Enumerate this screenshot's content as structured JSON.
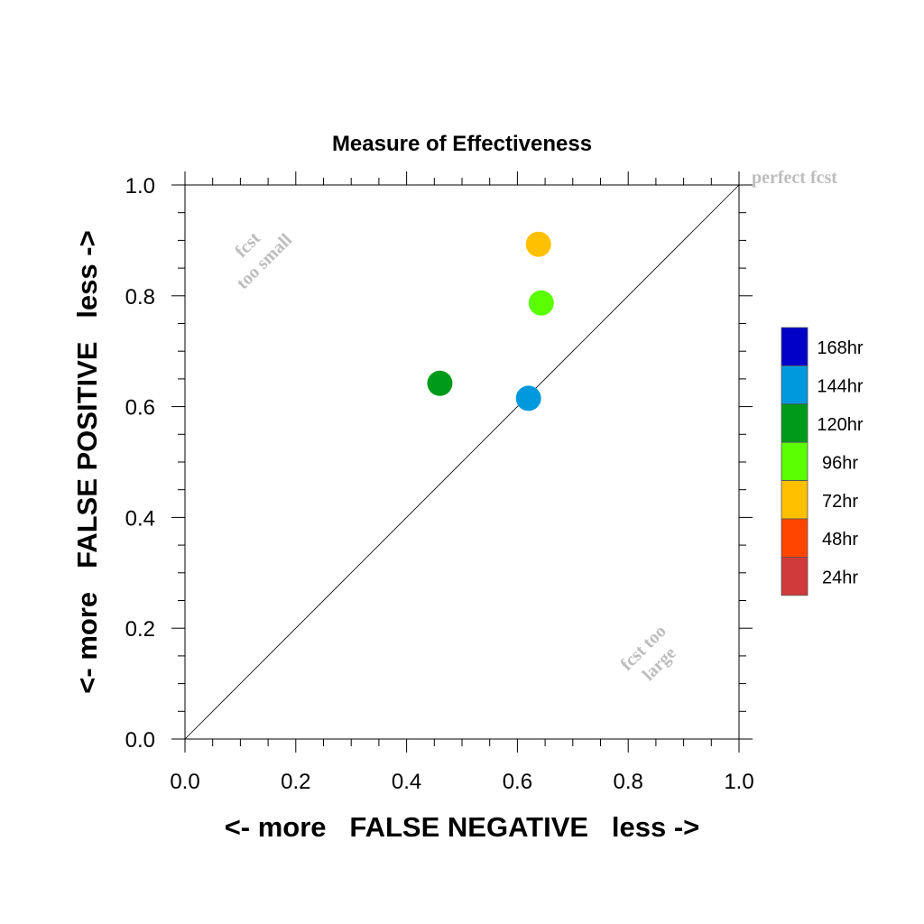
{
  "chart_data": {
    "type": "scatter",
    "title": "Measure of Effectiveness",
    "xlabel": "<- more   FALSE NEGATIVE   less ->",
    "ylabel": "<- more   FALSE POSITIVE   less ->",
    "xlim": [
      0.0,
      1.0
    ],
    "ylim": [
      0.0,
      1.0
    ],
    "x_ticks": [
      "0.0",
      "0.2",
      "0.4",
      "0.6",
      "0.8",
      "1.0"
    ],
    "y_ticks": [
      "0.0",
      "0.2",
      "0.4",
      "0.6",
      "0.8",
      "1.0"
    ],
    "tick_values": [
      0.0,
      0.2,
      0.4,
      0.6,
      0.8,
      1.0
    ],
    "grid": false,
    "reference_line": "diagonal",
    "annotations": {
      "perfect": "perfect fcst",
      "too_small_1": "fcst",
      "too_small_2": "too small",
      "too_large_1": "fcst too",
      "too_large_2": "large"
    },
    "legend": {
      "placement": "right",
      "entries": [
        {
          "label": "168hr",
          "color": "#0000c8"
        },
        {
          "label": "144hr",
          "color": "#0099dd"
        },
        {
          "label": "120hr",
          "color": "#009a1a"
        },
        {
          "label": "96hr",
          "color": "#5aff00"
        },
        {
          "label": "72hr",
          "color": "#ffc000"
        },
        {
          "label": "48hr",
          "color": "#ff4500"
        },
        {
          "label": "24hr",
          "color": "#d03a3a"
        }
      ]
    },
    "points": [
      {
        "series": "72hr",
        "x": 0.638,
        "y": 0.893,
        "color": "#ffc000"
      },
      {
        "series": "96hr",
        "x": 0.643,
        "y": 0.787,
        "color": "#5aff00"
      },
      {
        "series": "120hr",
        "x": 0.46,
        "y": 0.642,
        "color": "#009a1a"
      },
      {
        "series": "144hr",
        "x": 0.62,
        "y": 0.615,
        "color": "#0099dd"
      }
    ]
  }
}
